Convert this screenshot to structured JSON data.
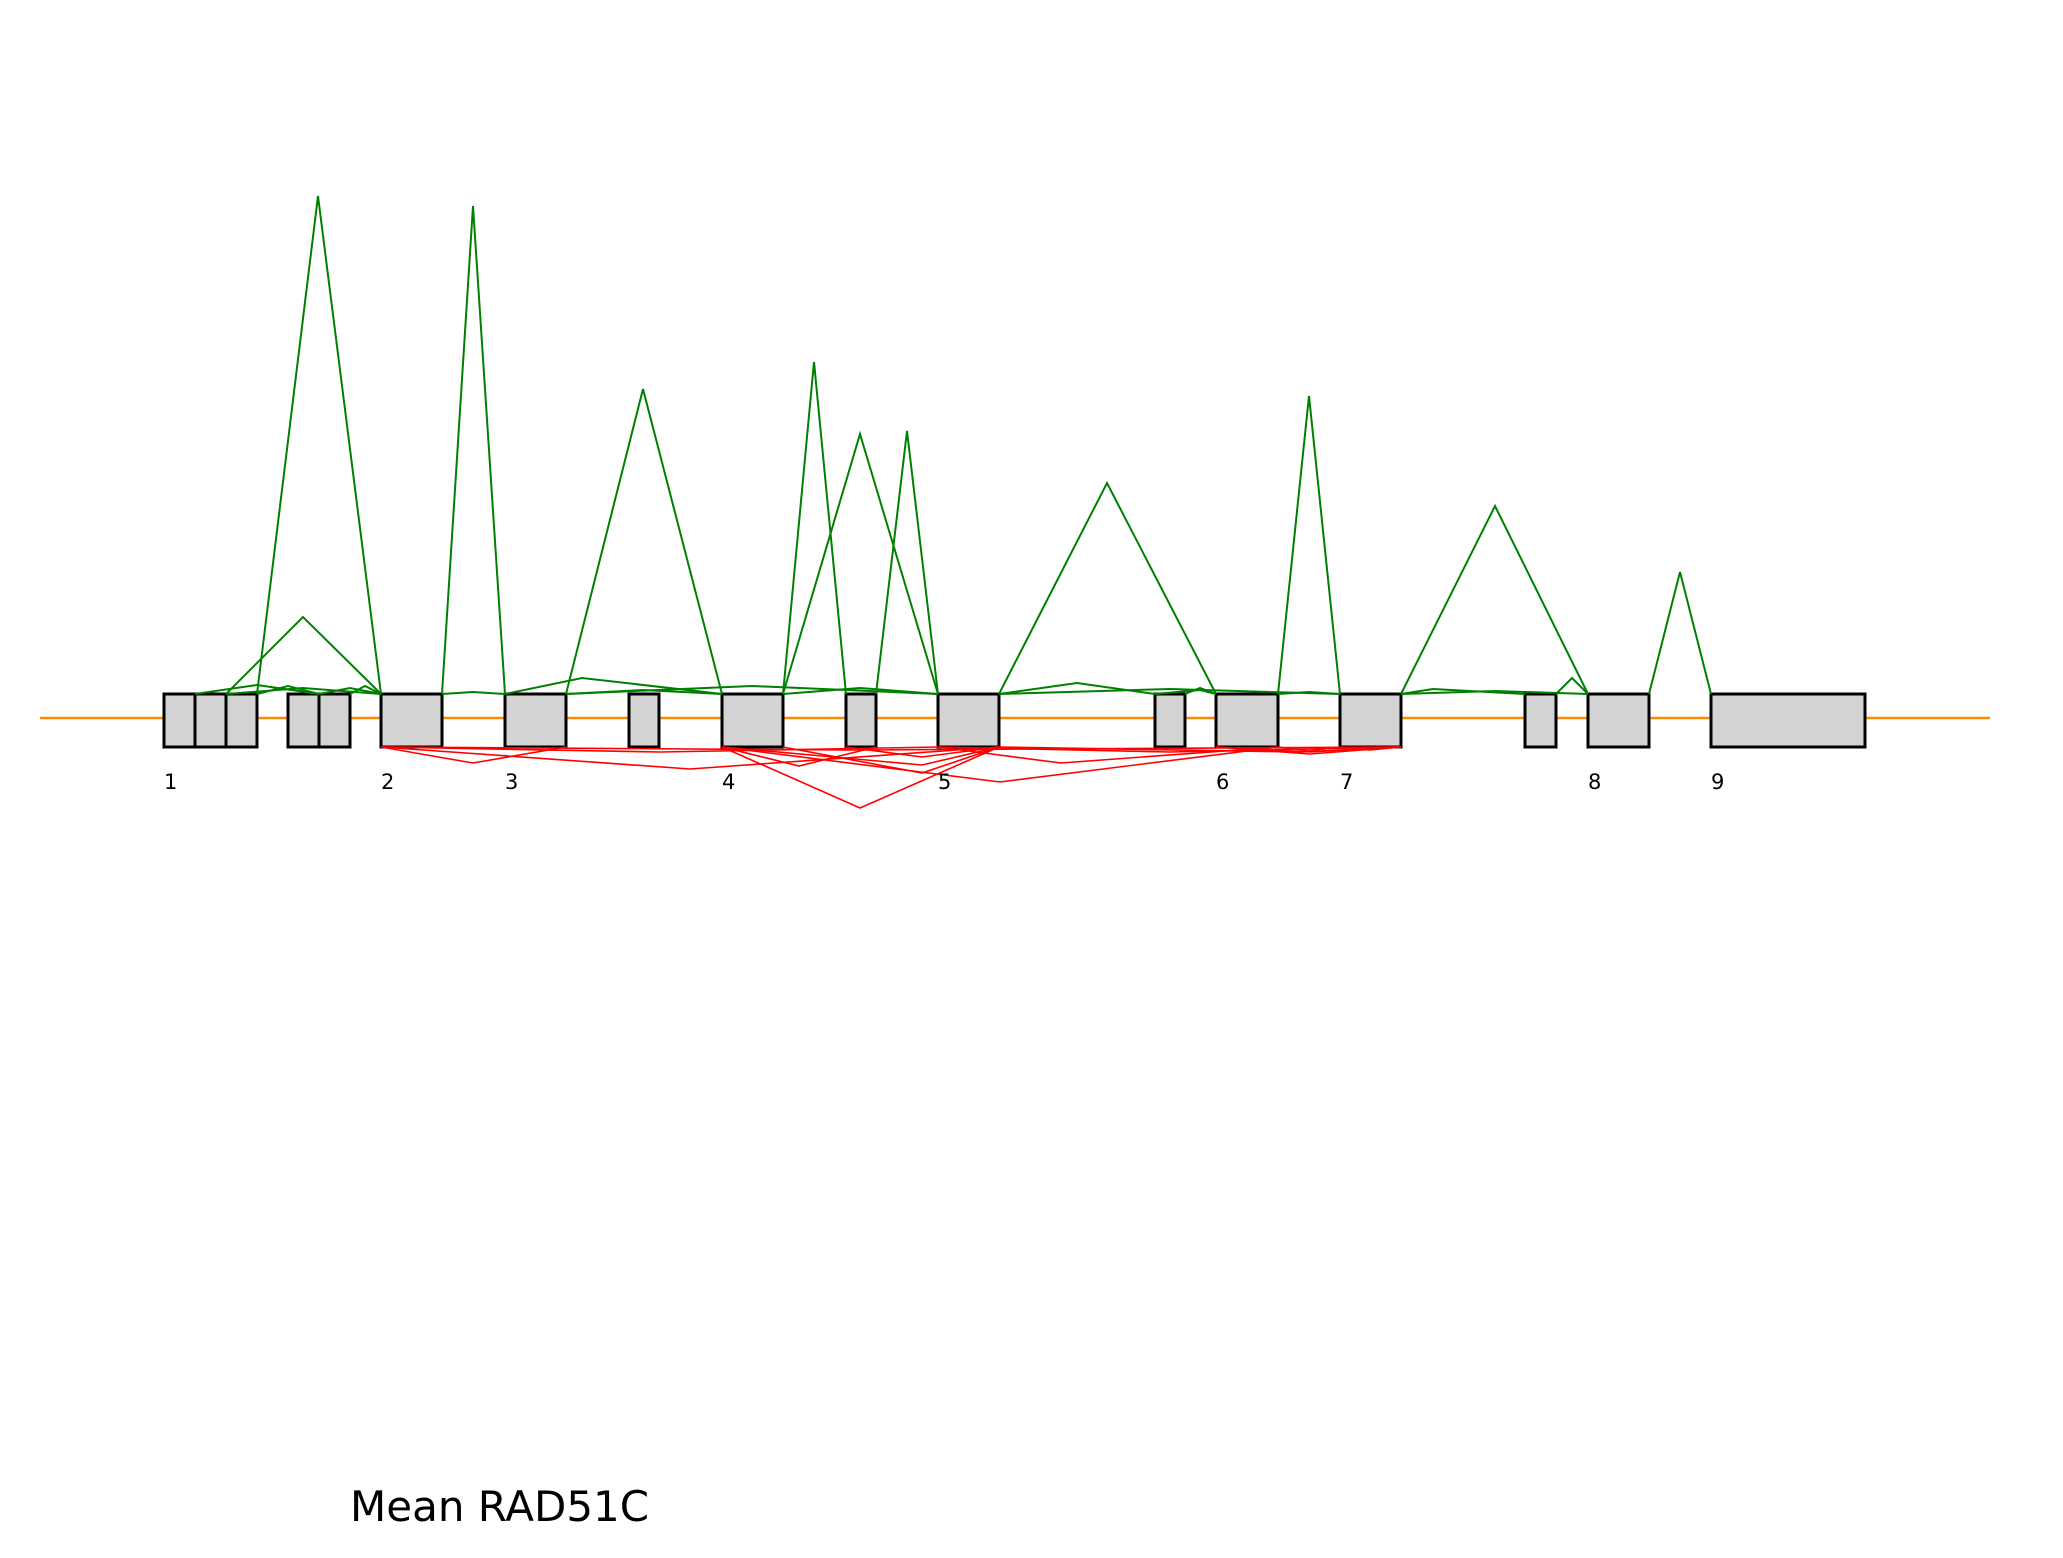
{
  "title": "Mean RAD51C",
  "colors": {
    "backbone": "#ff8c00",
    "exon_fill": "#d3d3d3",
    "exon_stroke": "#000000",
    "junction_up": "#008000",
    "junction_down": "#ff0000"
  },
  "exon_labels": [
    "1",
    "2",
    "3",
    "4",
    "5",
    "6",
    "7",
    "8",
    "9"
  ]
}
